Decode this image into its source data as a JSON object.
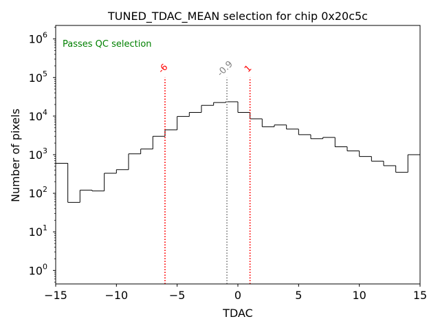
{
  "chart_data": {
    "type": "histogram",
    "title": "TUNED_TDAC_MEAN selection for chip 0x20c5c",
    "xlabel": "TDAC",
    "ylabel": "Number of pixels",
    "xlim": [
      -15,
      15
    ],
    "ylim_log10": [
      -0.35,
      6.35
    ],
    "yscale": "log",
    "x_ticks": [
      -15,
      -10,
      -5,
      0,
      5,
      10,
      15
    ],
    "x_tick_labels": [
      "−15",
      "−10",
      "−5",
      "0",
      "5",
      "10",
      "15"
    ],
    "y_ticks_exponent": [
      0,
      1,
      2,
      3,
      4,
      5,
      6
    ],
    "y_tick_base": "10",
    "bin_edges": [
      -15,
      -14,
      -13,
      -12,
      -11,
      -10,
      -9,
      -8,
      -7,
      -6,
      -5,
      -4,
      -3,
      -2,
      -1,
      0,
      1,
      2,
      3,
      4,
      5,
      6,
      7,
      8,
      9,
      10,
      11,
      12,
      13,
      14,
      15
    ],
    "counts": [
      600,
      58,
      120,
      115,
      330,
      410,
      1050,
      1400,
      3000,
      4400,
      9800,
      12500,
      19000,
      22500,
      23500,
      12500,
      8500,
      5300,
      5900,
      4600,
      3300,
      2600,
      2800,
      1600,
      1250,
      900,
      680,
      520,
      350,
      1000
    ],
    "line_color": "#000000",
    "annotation": {
      "text": "Passes QC selection",
      "color": "#008000",
      "position": "top-left"
    },
    "markers": [
      {
        "x": -6,
        "label": "-6",
        "color": "#ff0000",
        "style": "dotted"
      },
      {
        "x": -0.9,
        "label": "-0.9",
        "color": "#808080",
        "style": "dotted"
      },
      {
        "x": 1,
        "label": "1",
        "color": "#ff0000",
        "style": "dotted"
      }
    ]
  }
}
